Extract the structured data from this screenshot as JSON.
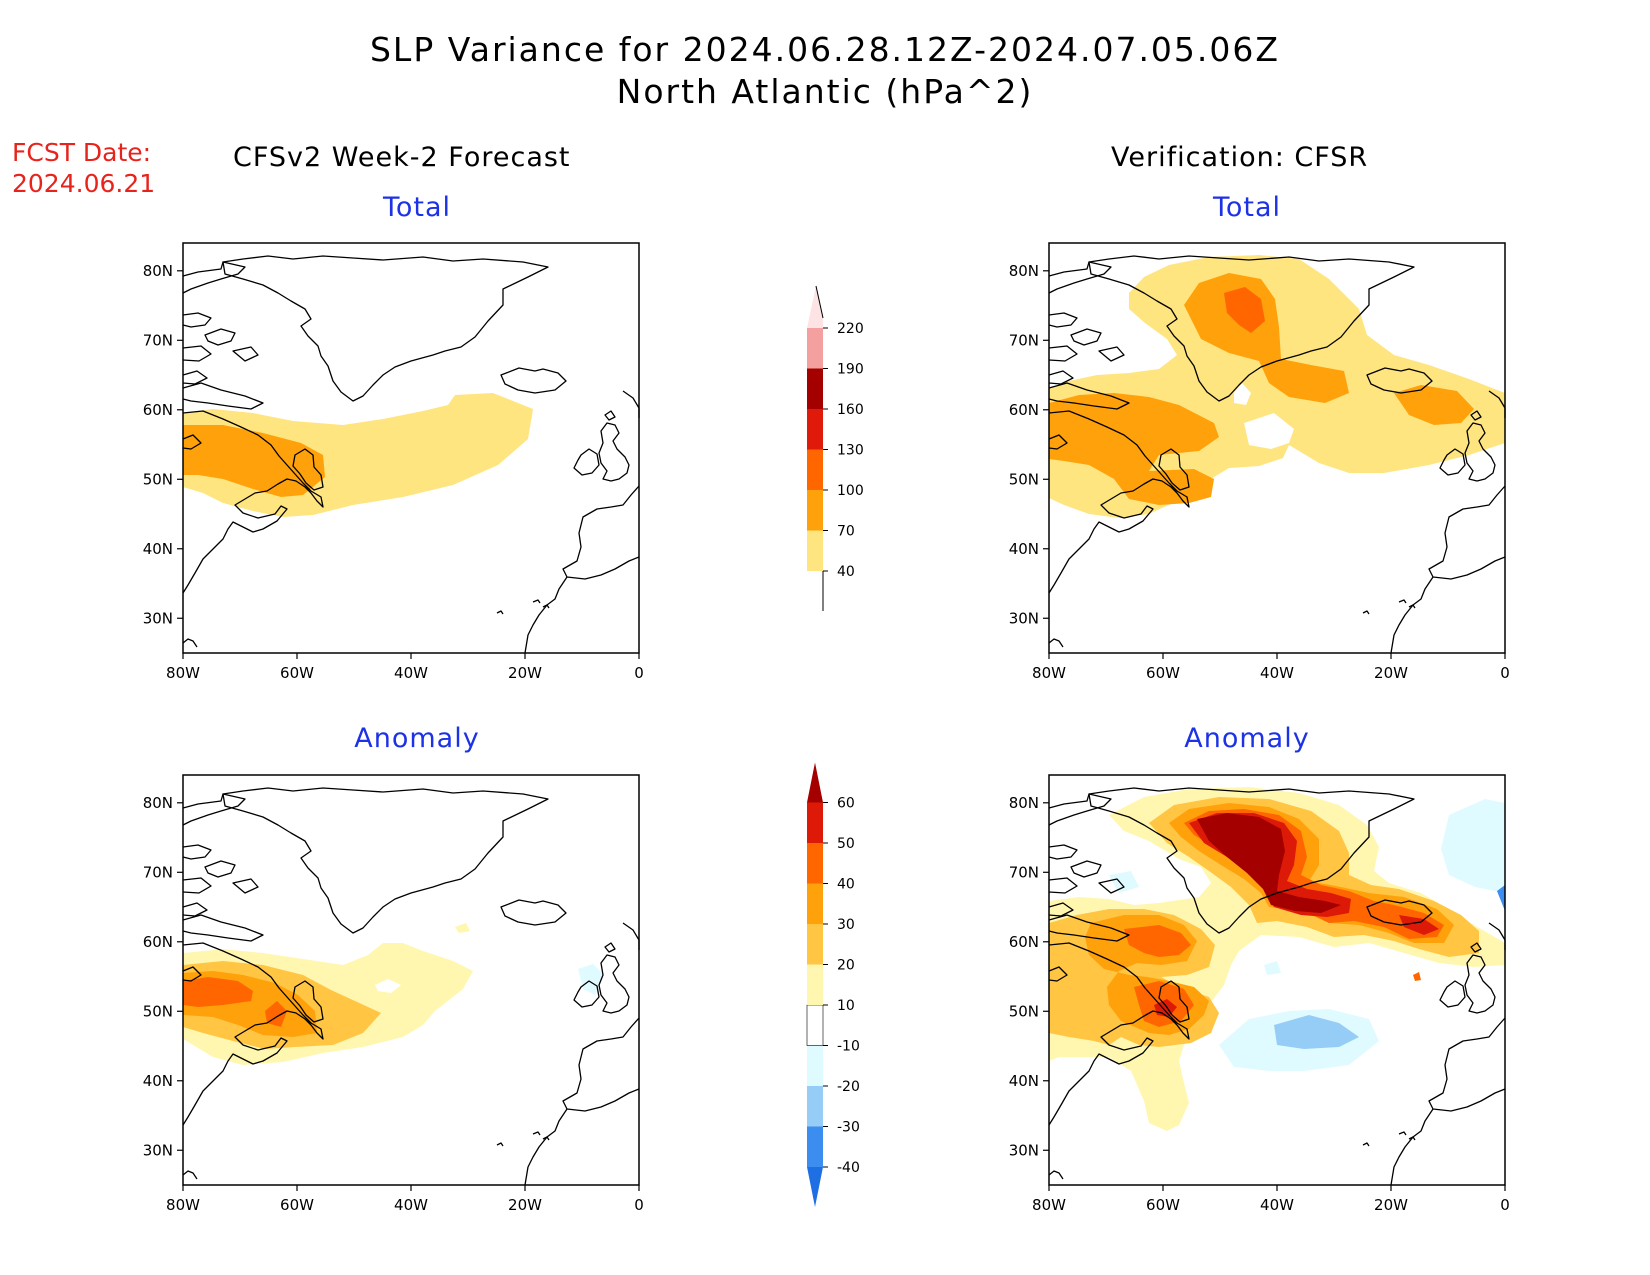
{
  "header": {
    "title_line1": "SLP Variance for 2024.06.28.12Z-2024.07.05.06Z",
    "title_line2": "North Atlantic (hPa^2)"
  },
  "forecast_date": {
    "label": "FCST Date:",
    "value": "2024.06.21"
  },
  "columns": {
    "left_title": "CFSv2 Week-2 Forecast",
    "right_title": "Verification: CFSR"
  },
  "panels": [
    {
      "id": "forecast-total",
      "subtitle": "Total"
    },
    {
      "id": "verification-total",
      "subtitle": "Total"
    },
    {
      "id": "forecast-anomaly",
      "subtitle": "Anomaly"
    },
    {
      "id": "verification-anomaly",
      "subtitle": "Anomaly"
    }
  ],
  "map": {
    "region": "North Atlantic",
    "lon_ticks": [
      "80W",
      "60W",
      "40W",
      "20W",
      "0"
    ],
    "lat_ticks": [
      "80N",
      "70N",
      "60N",
      "50N",
      "40N",
      "30N"
    ],
    "lon_range": [
      -80,
      0
    ],
    "lat_range": [
      25,
      84
    ]
  },
  "colorbars": {
    "total": {
      "levels": [
        "40",
        "70",
        "100",
        "130",
        "160",
        "190",
        "220"
      ],
      "colors": [
        "#ffe57f",
        "#ffa10a",
        "#ff6600",
        "#e01a0a",
        "#a50000",
        "#f4a0a0",
        "#fde3e3"
      ]
    },
    "anomaly": {
      "levels": [
        "-40",
        "-30",
        "-20",
        "-10",
        "10",
        "20",
        "30",
        "40",
        "50",
        "60"
      ],
      "colors": [
        "#1e6fe3",
        "#3b8ef0",
        "#96cdf7",
        "#e0fbff",
        "#ffffff",
        "#fff7b0",
        "#ffc543",
        "#ffa10a",
        "#ff6600",
        "#dd1a08",
        "#a50000"
      ]
    }
  }
}
